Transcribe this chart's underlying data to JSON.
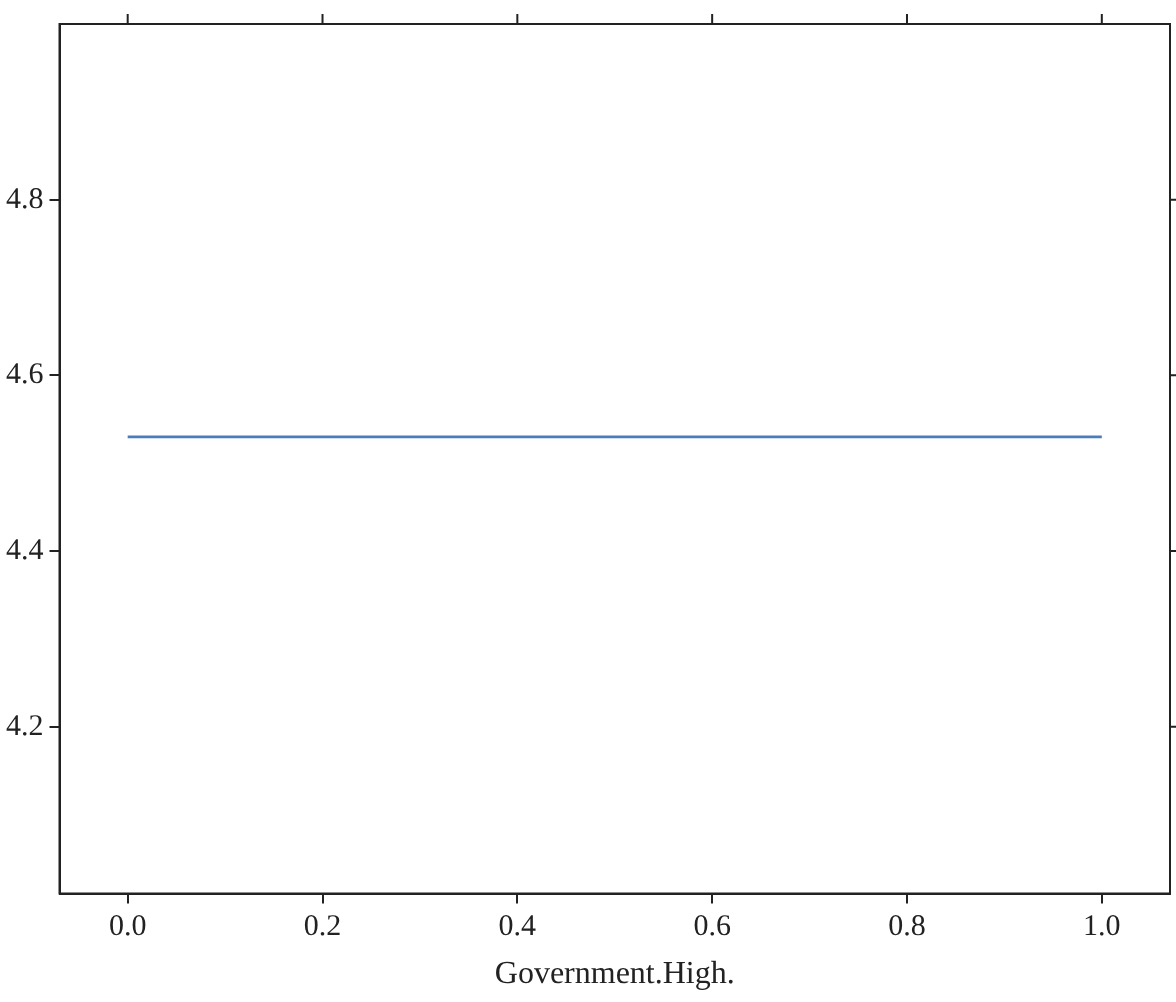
{
  "chart_data": {
    "type": "line",
    "xlabel": "Government.High.",
    "x": [
      0,
      1
    ],
    "series": [
      {
        "color": "#4a7ebb",
        "values": [
          4.53,
          4.53
        ]
      }
    ],
    "xlim": [
      -0.07,
      1.07
    ],
    "xticks": [
      {
        "value": 0,
        "label": "0.0"
      },
      {
        "value": 0.2,
        "label": "0.2"
      },
      {
        "value": 0.4,
        "label": "0.4"
      },
      {
        "value": 0.6,
        "label": "0.6"
      },
      {
        "value": 0.8,
        "label": "0.8"
      },
      {
        "value": 1,
        "label": "1.0"
      }
    ],
    "ylim": [
      4.01,
      5.0
    ],
    "yticks": [
      4.2,
      4.4,
      4.6,
      4.8
    ],
    "grid": false,
    "legend": false,
    "marker": "none",
    "line_style": "solid"
  }
}
